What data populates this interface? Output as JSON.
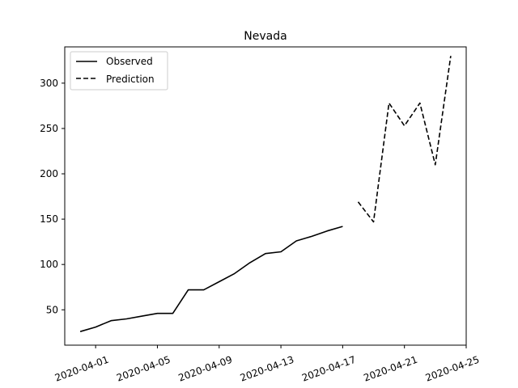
{
  "chart_data": {
    "type": "line",
    "title": "Nevada",
    "xlabel": "",
    "ylabel": "",
    "x_axis": {
      "type": "date",
      "range": [
        "2020-03-30",
        "2020-04-25"
      ],
      "ticks": [
        "2020-04-01",
        "2020-04-05",
        "2020-04-09",
        "2020-04-13",
        "2020-04-17",
        "2020-04-21",
        "2020-04-25"
      ],
      "tick_rotation_deg": 20
    },
    "y_axis": {
      "range": [
        11,
        340
      ],
      "ticks": [
        50,
        100,
        150,
        200,
        250,
        300
      ]
    },
    "grid": false,
    "legend": {
      "placement": "top-left"
    },
    "series": [
      {
        "name": "Observed",
        "style": "solid",
        "color": "#000000",
        "points": [
          {
            "x": "2020-03-31",
            "y": 26
          },
          {
            "x": "2020-04-01",
            "y": 31
          },
          {
            "x": "2020-04-02",
            "y": 38
          },
          {
            "x": "2020-04-03",
            "y": 40
          },
          {
            "x": "2020-04-04",
            "y": 43
          },
          {
            "x": "2020-04-05",
            "y": 46
          },
          {
            "x": "2020-04-06",
            "y": 46
          },
          {
            "x": "2020-04-07",
            "y": 72
          },
          {
            "x": "2020-04-08",
            "y": 72
          },
          {
            "x": "2020-04-09",
            "y": 81
          },
          {
            "x": "2020-04-10",
            "y": 90
          },
          {
            "x": "2020-04-11",
            "y": 102
          },
          {
            "x": "2020-04-12",
            "y": 112
          },
          {
            "x": "2020-04-13",
            "y": 114
          },
          {
            "x": "2020-04-14",
            "y": 126
          },
          {
            "x": "2020-04-15",
            "y": 131
          },
          {
            "x": "2020-04-16",
            "y": 137
          },
          {
            "x": "2020-04-17",
            "y": 142
          }
        ]
      },
      {
        "name": "Prediction",
        "style": "dashed",
        "color": "#000000",
        "points": [
          {
            "x": "2020-04-18",
            "y": 169
          },
          {
            "x": "2020-04-19",
            "y": 147
          },
          {
            "x": "2020-04-20",
            "y": 278
          },
          {
            "x": "2020-04-21",
            "y": 253
          },
          {
            "x": "2020-04-22",
            "y": 278
          },
          {
            "x": "2020-04-23",
            "y": 210
          },
          {
            "x": "2020-04-24",
            "y": 330
          }
        ]
      }
    ]
  }
}
